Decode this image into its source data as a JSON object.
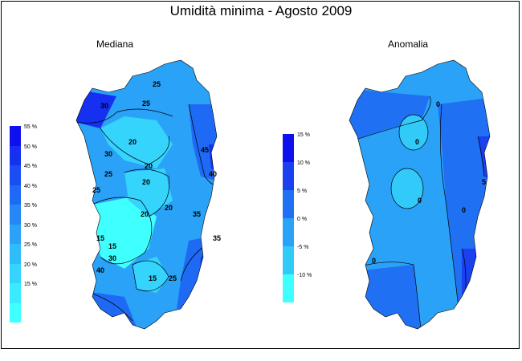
{
  "title": "Umidità minima - Agosto 2009",
  "left_panel": {
    "subtitle": "Mediana",
    "legend": {
      "labels": [
        "55 %",
        "50 %",
        "45 %",
        "40 %",
        "35 %",
        "30 %",
        "25 %",
        "20 %",
        "15 %"
      ],
      "colors": [
        "#1010ee",
        "#1530f0",
        "#1a4ef2",
        "#1f6af4",
        "#2588f6",
        "#2aa2f8",
        "#2fbcfa",
        "#35d4fc",
        "#3aeafe",
        "#40ffff"
      ]
    },
    "contour_labels": [
      "25",
      "30",
      "20",
      "25",
      "25",
      "30",
      "20",
      "20",
      "45",
      "40",
      "35",
      "25",
      "20",
      "15",
      "20",
      "15",
      "30",
      "25",
      "15",
      "35",
      "40"
    ]
  },
  "right_panel": {
    "subtitle": "Anomalia",
    "legend": {
      "labels": [
        "15 %",
        "10 %",
        "5 %",
        "0 %",
        "-5 %",
        "-10 %"
      ],
      "colors": [
        "#1010ee",
        "#1a40f0",
        "#2070f4",
        "#2aa2f8",
        "#32caf8",
        "#40ffff"
      ]
    },
    "contour_labels": [
      "0",
      "0",
      "5",
      "0",
      "0",
      "0"
    ]
  },
  "colors": {
    "land_high": "#1f6af4",
    "land_mid": "#2aa2f8",
    "land_low": "#35d4fc",
    "land_lowest": "#40ffff",
    "coast_dark": "#1530f0"
  }
}
